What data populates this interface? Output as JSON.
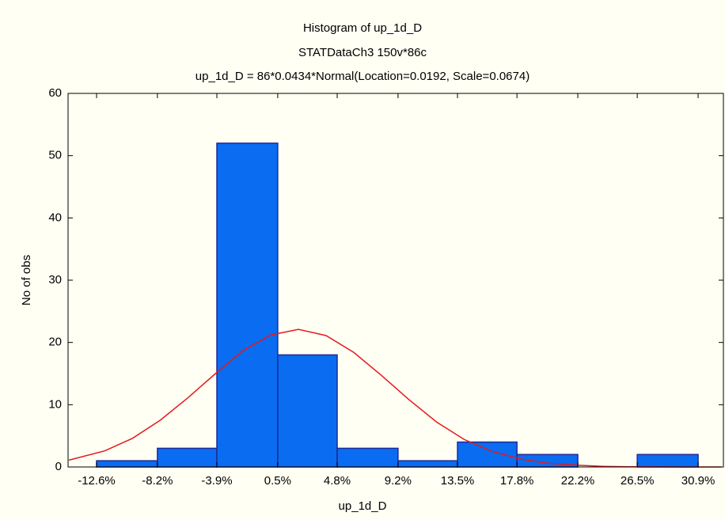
{
  "chart_data": {
    "type": "histogram",
    "title": "Histogram of up_1d_D",
    "subtitle": "STATDataCh3 150v*86c",
    "annotation": "up_1d_D = 86*0.0434*Normal(Location=0.0192, Scale=0.0674)",
    "xlabel": "up_1d_D",
    "ylabel": "No of obs",
    "bins": [
      -12.6,
      -8.2,
      -3.9,
      0.5,
      4.8,
      9.2,
      13.5,
      17.8,
      22.2,
      26.5,
      30.9
    ],
    "values": [
      1,
      3,
      52,
      18,
      3,
      1,
      4,
      2,
      0,
      2
    ],
    "color": "#0a6cf0",
    "edge_color": "#1c2a96",
    "xlim": [
      -14.66,
      32.73
    ],
    "xticks": [
      {
        "value": -12.6,
        "label": "-12.6%"
      },
      {
        "value": -8.2,
        "label": "-8.2%"
      },
      {
        "value": -3.9,
        "label": "-3.9%"
      },
      {
        "value": 0.5,
        "label": "0.5%"
      },
      {
        "value": 4.8,
        "label": "4.8%"
      },
      {
        "value": 9.2,
        "label": "9.2%"
      },
      {
        "value": 13.5,
        "label": "13.5%"
      },
      {
        "value": 17.8,
        "label": "17.8%"
      },
      {
        "value": 22.2,
        "label": "22.2%"
      },
      {
        "value": 26.5,
        "label": "26.5%"
      },
      {
        "value": 30.9,
        "label": "30.9%"
      }
    ],
    "ylim": [
      0,
      60
    ],
    "yticks": [
      0,
      10,
      20,
      30,
      40,
      50,
      60
    ],
    "grid": false,
    "curve": {
      "color": "#e31a1c",
      "x": [
        -14.6,
        -12,
        -10,
        -8,
        -6,
        -4,
        -2,
        0,
        2,
        4,
        6,
        8,
        10,
        12,
        14,
        16,
        18,
        20,
        22,
        24,
        26,
        28,
        30,
        32.6
      ],
      "values": [
        1.1,
        2.6,
        4.6,
        7.5,
        11.1,
        15.0,
        18.7,
        21.2,
        22.1,
        21.1,
        18.4,
        14.7,
        10.8,
        7.2,
        4.4,
        2.5,
        1.3,
        0.6,
        0.3,
        0.1,
        0.04,
        0.01,
        0,
        0
      ]
    }
  }
}
